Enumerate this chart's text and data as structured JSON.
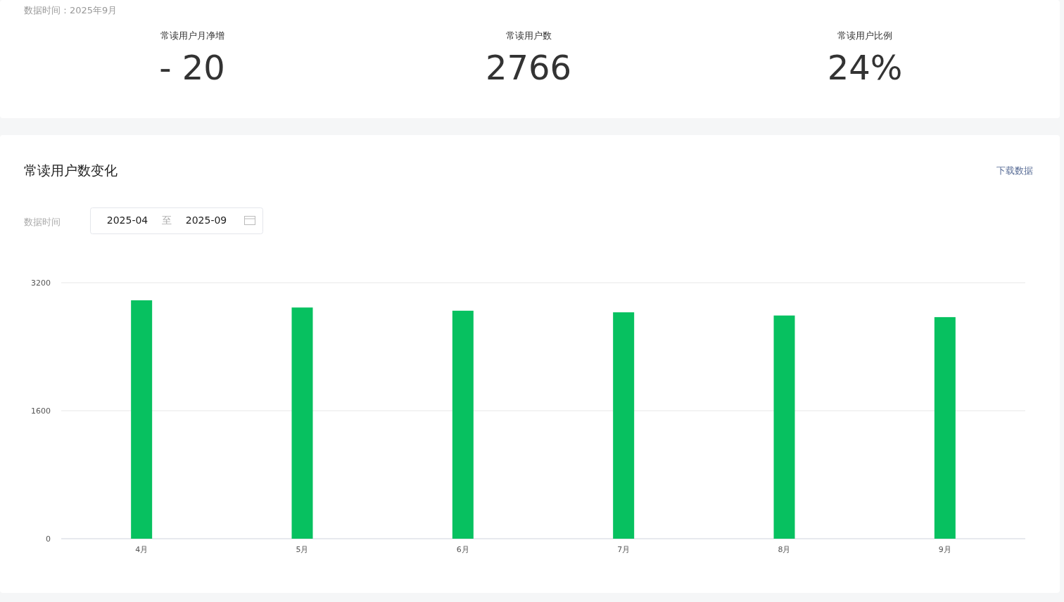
{
  "chart_data": [
    {
      "type": "other",
      "title": "数据时间：2025年9月",
      "annotations": [
        "常读用户月净增",
        "- 20",
        "常读用户数",
        "2766",
        "常读用户比例",
        "24%"
      ]
    },
    {
      "type": "bar",
      "title": "常读用户数变化",
      "annotations": [
        "下载数据",
        "数据时间",
        "2025-04",
        "至",
        "2025-09"
      ],
      "categories": [
        "4月",
        "5月",
        "6月",
        "7月",
        "8月",
        "9月"
      ],
      "values": [
        2980,
        2890,
        2850,
        2830,
        2790,
        2770
      ],
      "color": "#07c160",
      "ylim": [
        0,
        3200
      ],
      "yticks": [
        0,
        1600,
        3200
      ],
      "grid": "y"
    }
  ]
}
